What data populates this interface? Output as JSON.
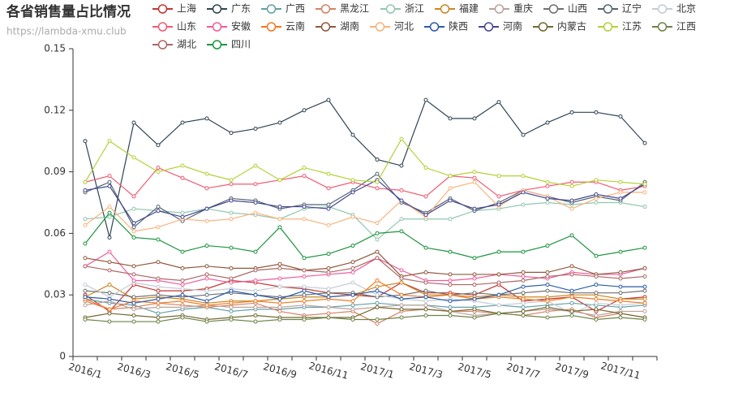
{
  "chart_data": {
    "type": "line",
    "title": "各省销售量占比情况",
    "subtitle": "https://lambda-xmu.club",
    "categories": [
      "2016/1",
      null,
      "2016/3",
      null,
      "2016/5",
      null,
      "2016/7",
      null,
      "2016/9",
      null,
      "2016/11",
      null,
      "2017/1",
      null,
      "2017/3",
      null,
      "2017/5",
      null,
      "2017/7",
      null,
      "2017/9",
      null,
      "2017/11",
      null
    ],
    "ylim": [
      0,
      0.15
    ],
    "yticks": [
      0,
      0.03,
      0.06,
      0.09,
      0.12,
      0.15
    ],
    "grid": false,
    "series": [
      {
        "name": "上海",
        "color": "#c23531",
        "values": [
          0.03,
          0.022,
          0.035,
          0.032,
          0.032,
          0.033,
          0.037,
          0.036,
          0.034,
          0.033,
          0.031,
          0.03,
          0.029,
          0.036,
          0.031,
          0.031,
          0.03,
          0.035,
          0.027,
          0.028,
          0.029,
          0.022,
          0.028,
          0.029
        ]
      },
      {
        "name": "广东",
        "color": "#2f4554",
        "values": [
          0.105,
          0.058,
          0.114,
          0.103,
          0.114,
          0.116,
          0.109,
          0.111,
          0.114,
          0.12,
          0.125,
          0.108,
          0.096,
          0.093,
          0.125,
          0.116,
          0.116,
          0.124,
          0.108,
          0.114,
          0.119,
          0.119,
          0.117,
          0.104
        ]
      },
      {
        "name": "广西",
        "color": "#61a0a8",
        "values": [
          0.028,
          0.026,
          0.025,
          0.021,
          0.023,
          0.024,
          0.022,
          0.023,
          0.023,
          0.024,
          0.024,
          0.025,
          0.026,
          0.025,
          0.025,
          0.024,
          0.024,
          0.025,
          0.024,
          0.025,
          0.026,
          0.025,
          0.024,
          0.025
        ]
      },
      {
        "name": "黑龙江",
        "color": "#d48265",
        "values": [
          0.027,
          0.023,
          0.024,
          0.026,
          0.025,
          0.024,
          0.025,
          0.026,
          0.022,
          0.02,
          0.021,
          0.022,
          0.016,
          0.022,
          0.023,
          0.022,
          0.022,
          0.021,
          0.02,
          0.022,
          0.023,
          0.019,
          0.021,
          0.019
        ]
      },
      {
        "name": "浙江",
        "color": "#91c7ae",
        "values": [
          0.067,
          0.068,
          0.072,
          0.071,
          0.07,
          0.072,
          0.07,
          0.069,
          0.067,
          0.072,
          0.073,
          0.069,
          0.057,
          0.067,
          0.067,
          0.067,
          0.071,
          0.072,
          0.074,
          0.075,
          0.074,
          0.075,
          0.075,
          0.073
        ]
      },
      {
        "name": "福建",
        "color": "#ca8622",
        "values": [
          0.029,
          0.035,
          0.028,
          0.029,
          0.028,
          0.026,
          0.027,
          0.027,
          0.028,
          0.029,
          0.029,
          0.03,
          0.034,
          0.036,
          0.03,
          0.03,
          0.029,
          0.03,
          0.029,
          0.029,
          0.03,
          0.03,
          0.028,
          0.028
        ]
      },
      {
        "name": "重庆",
        "color": "#bda29a",
        "values": [
          0.025,
          0.027,
          0.023,
          0.024,
          0.024,
          0.025,
          0.024,
          0.024,
          0.024,
          0.025,
          0.024,
          0.023,
          0.024,
          0.025,
          0.025,
          0.022,
          0.02,
          0.021,
          0.022,
          0.023,
          0.022,
          0.02,
          0.022,
          0.022
        ]
      },
      {
        "name": "山西",
        "color": "#6e7074",
        "values": [
          0.032,
          0.031,
          0.029,
          0.03,
          0.029,
          0.03,
          0.031,
          0.03,
          0.029,
          0.03,
          0.031,
          0.031,
          0.029,
          0.03,
          0.032,
          0.03,
          0.031,
          0.03,
          0.031,
          0.032,
          0.031,
          0.031,
          0.031,
          0.032
        ]
      },
      {
        "name": "辽宁",
        "color": "#546570",
        "values": [
          0.08,
          0.085,
          0.063,
          0.073,
          0.066,
          0.072,
          0.077,
          0.076,
          0.072,
          0.074,
          0.074,
          0.081,
          0.089,
          0.075,
          0.07,
          0.077,
          0.071,
          0.075,
          0.081,
          0.078,
          0.075,
          0.078,
          0.076,
          0.085
        ]
      },
      {
        "name": "北京",
        "color": "#c4ccd3",
        "values": [
          0.035,
          0.029,
          0.036,
          0.034,
          0.033,
          0.032,
          0.033,
          0.032,
          0.034,
          0.034,
          0.033,
          0.036,
          0.03,
          0.028,
          0.027,
          0.028,
          0.027,
          0.025,
          0.026,
          0.027,
          0.021,
          0.026,
          0.025,
          0.026
        ]
      },
      {
        "name": "山东",
        "color": "#f05b72",
        "values": [
          0.085,
          0.088,
          0.078,
          0.092,
          0.087,
          0.082,
          0.084,
          0.084,
          0.086,
          0.088,
          0.082,
          0.085,
          0.082,
          0.081,
          0.078,
          0.088,
          0.087,
          0.078,
          0.081,
          0.083,
          0.085,
          0.085,
          0.081,
          0.083
        ]
      },
      {
        "name": "安徽",
        "color": "#ef5b9c",
        "values": [
          0.044,
          0.051,
          0.037,
          0.037,
          0.035,
          0.038,
          0.036,
          0.037,
          0.038,
          0.039,
          0.04,
          0.041,
          0.048,
          0.042,
          0.037,
          0.037,
          0.038,
          0.04,
          0.039,
          0.038,
          0.041,
          0.04,
          0.04,
          0.043
        ]
      },
      {
        "name": "云南",
        "color": "#f47920",
        "values": [
          0.028,
          0.023,
          0.027,
          0.026,
          0.027,
          0.025,
          0.026,
          0.027,
          0.026,
          0.027,
          0.028,
          0.027,
          0.037,
          0.03,
          0.029,
          0.03,
          0.028,
          0.029,
          0.028,
          0.027,
          0.029,
          0.028,
          0.027,
          0.026
        ]
      },
      {
        "name": "湖南",
        "color": "#905a3d",
        "values": [
          0.048,
          0.046,
          0.044,
          0.046,
          0.043,
          0.044,
          0.043,
          0.043,
          0.045,
          0.042,
          0.043,
          0.046,
          0.051,
          0.039,
          0.041,
          0.04,
          0.04,
          0.04,
          0.041,
          0.041,
          0.044,
          0.04,
          0.041,
          0.043
        ]
      },
      {
        "name": "河北",
        "color": "#fab27b",
        "values": [
          0.064,
          0.073,
          0.061,
          0.063,
          0.067,
          0.066,
          0.067,
          0.07,
          0.067,
          0.067,
          0.064,
          0.068,
          0.065,
          0.076,
          0.068,
          0.082,
          0.085,
          0.073,
          0.081,
          0.078,
          0.072,
          0.077,
          0.08,
          0.08
        ]
      },
      {
        "name": "陕西",
        "color": "#2a5caa",
        "values": [
          0.029,
          0.028,
          0.026,
          0.028,
          0.03,
          0.027,
          0.032,
          0.03,
          0.028,
          0.032,
          0.029,
          0.03,
          0.032,
          0.028,
          0.029,
          0.027,
          0.028,
          0.03,
          0.034,
          0.035,
          0.032,
          0.035,
          0.034,
          0.034
        ]
      },
      {
        "name": "河南",
        "color": "#444693",
        "values": [
          0.081,
          0.083,
          0.065,
          0.071,
          0.068,
          0.072,
          0.076,
          0.075,
          0.073,
          0.073,
          0.072,
          0.08,
          0.086,
          0.076,
          0.069,
          0.076,
          0.072,
          0.074,
          0.08,
          0.077,
          0.076,
          0.079,
          0.077,
          0.084
        ]
      },
      {
        "name": "内蒙古",
        "color": "#726930",
        "values": [
          0.019,
          0.021,
          0.02,
          0.019,
          0.02,
          0.018,
          0.019,
          0.02,
          0.019,
          0.019,
          0.019,
          0.019,
          0.024,
          0.023,
          0.023,
          0.022,
          0.023,
          0.021,
          0.022,
          0.024,
          0.022,
          0.023,
          0.021,
          0.019
        ]
      },
      {
        "name": "江苏",
        "color": "#b2d235",
        "values": [
          0.085,
          0.105,
          0.097,
          0.09,
          0.093,
          0.089,
          0.086,
          0.093,
          0.086,
          0.092,
          0.089,
          0.086,
          0.085,
          0.106,
          0.092,
          0.088,
          0.09,
          0.088,
          0.088,
          0.085,
          0.083,
          0.086,
          0.085,
          0.084
        ]
      },
      {
        "name": "江西",
        "color": "#6d8346",
        "values": [
          0.018,
          0.017,
          0.017,
          0.017,
          0.019,
          0.017,
          0.018,
          0.017,
          0.018,
          0.018,
          0.019,
          0.018,
          0.018,
          0.019,
          0.02,
          0.02,
          0.019,
          0.021,
          0.02,
          0.019,
          0.02,
          0.018,
          0.019,
          0.018
        ]
      },
      {
        "name": "湖北",
        "color": "#ac6767",
        "values": [
          0.044,
          0.042,
          0.04,
          0.038,
          0.037,
          0.04,
          0.038,
          0.042,
          0.043,
          0.042,
          0.041,
          0.043,
          0.048,
          0.038,
          0.036,
          0.035,
          0.035,
          0.036,
          0.037,
          0.039,
          0.04,
          0.039,
          0.038,
          0.039
        ]
      },
      {
        "name": "四川",
        "color": "#1d953f",
        "values": [
          0.055,
          0.07,
          0.058,
          0.057,
          0.051,
          0.054,
          0.053,
          0.051,
          0.063,
          0.048,
          0.05,
          0.054,
          0.06,
          0.061,
          0.053,
          0.051,
          0.048,
          0.051,
          0.051,
          0.054,
          0.059,
          0.049,
          0.051,
          0.053
        ]
      }
    ]
  }
}
